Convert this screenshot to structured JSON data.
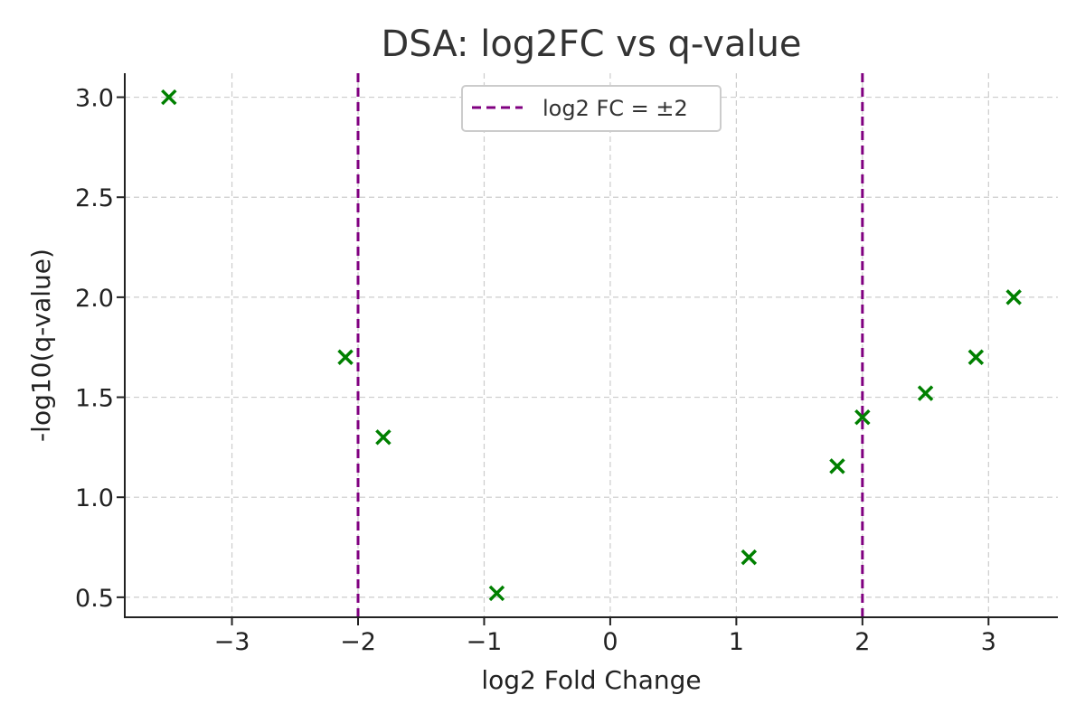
{
  "chart_data": {
    "type": "scatter",
    "title": "DSA: log2FC vs q-value",
    "xlabel": "log2 Fold Change",
    "ylabel": "-log10(q-value)",
    "xlim": [
      -3.85,
      3.55
    ],
    "ylim": [
      0.4,
      3.12
    ],
    "x_ticks": [
      -3,
      -2,
      -1,
      0,
      1,
      2,
      3
    ],
    "x_tick_labels": [
      "−3",
      "−2",
      "−1",
      "0",
      "1",
      "2",
      "3"
    ],
    "y_ticks": [
      0.5,
      1.0,
      1.5,
      2.0,
      2.5,
      3.0
    ],
    "y_tick_labels": [
      "0.5",
      "1.0",
      "1.5",
      "2.0",
      "2.5",
      "3.0"
    ],
    "grid": true,
    "legend_position": "top-center",
    "series": [
      {
        "marker": "x",
        "color": "#008000",
        "points": [
          {
            "x": -3.5,
            "y": 3.0
          },
          {
            "x": -2.1,
            "y": 1.7
          },
          {
            "x": -1.8,
            "y": 1.3
          },
          {
            "x": -0.9,
            "y": 0.52
          },
          {
            "x": 1.1,
            "y": 0.7
          },
          {
            "x": 1.8,
            "y": 1.155
          },
          {
            "x": 2.0,
            "y": 1.4
          },
          {
            "x": 2.5,
            "y": 1.52
          },
          {
            "x": 2.9,
            "y": 1.7
          },
          {
            "x": 3.2,
            "y": 2.0
          }
        ]
      }
    ],
    "threshold_lines": {
      "label": "log2 FC = ±2",
      "color": "#800080",
      "x_values": [
        -2,
        2
      ]
    }
  }
}
